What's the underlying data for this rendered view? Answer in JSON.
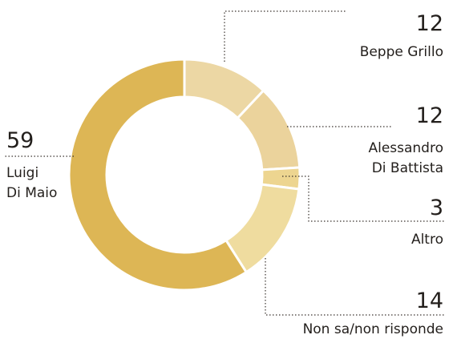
{
  "chart_data": {
    "type": "pie",
    "variant": "donut",
    "slices": [
      {
        "id": "grillo",
        "value": 12,
        "label_lines": [
          "Beppe Grillo"
        ],
        "color": "#ecd7a4"
      },
      {
        "id": "dibattista",
        "value": 12,
        "label_lines": [
          "Alessandro",
          "Di Battista"
        ],
        "color": "#ebd39c"
      },
      {
        "id": "altro",
        "value": 3,
        "label_lines": [
          "Altro"
        ],
        "color": "#edd590"
      },
      {
        "id": "nonsa",
        "value": 14,
        "label_lines": [
          "Non sa/non risponde"
        ],
        "color": "#efdc9f"
      },
      {
        "id": "dimaio",
        "value": 59,
        "label_lines": [
          "Luigi",
          "Di Maio"
        ],
        "color": "#ddb655"
      }
    ],
    "value_labels": [
      "12",
      "12",
      "3",
      "14",
      "59"
    ]
  }
}
